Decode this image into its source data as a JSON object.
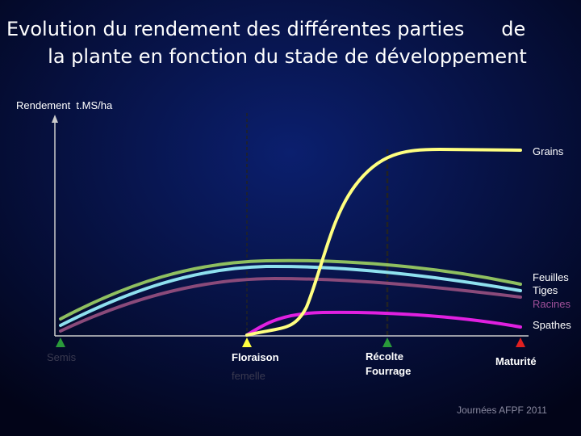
{
  "header": {
    "title_lines": [
      "Evolution du rendement des différentes parties      de",
      "la plante en fonction du stade de développement"
    ]
  },
  "axis": {
    "y_label": "Rendement  t.MS/ha"
  },
  "curves": [
    {
      "label": "Grains"
    },
    {
      "label": "Feuilles"
    },
    {
      "label": "Tiges"
    },
    {
      "label": "Racines"
    },
    {
      "label": "Spathes"
    }
  ],
  "stages": [
    {
      "lines": [
        "Semis"
      ]
    },
    {
      "lines": [
        "Floraison",
        "femelle"
      ]
    },
    {
      "lines": [
        "Récolte",
        "Fourrage"
      ]
    },
    {
      "lines": [
        "Maturité"
      ]
    }
  ],
  "footer": "Journées AFPF 2011"
}
